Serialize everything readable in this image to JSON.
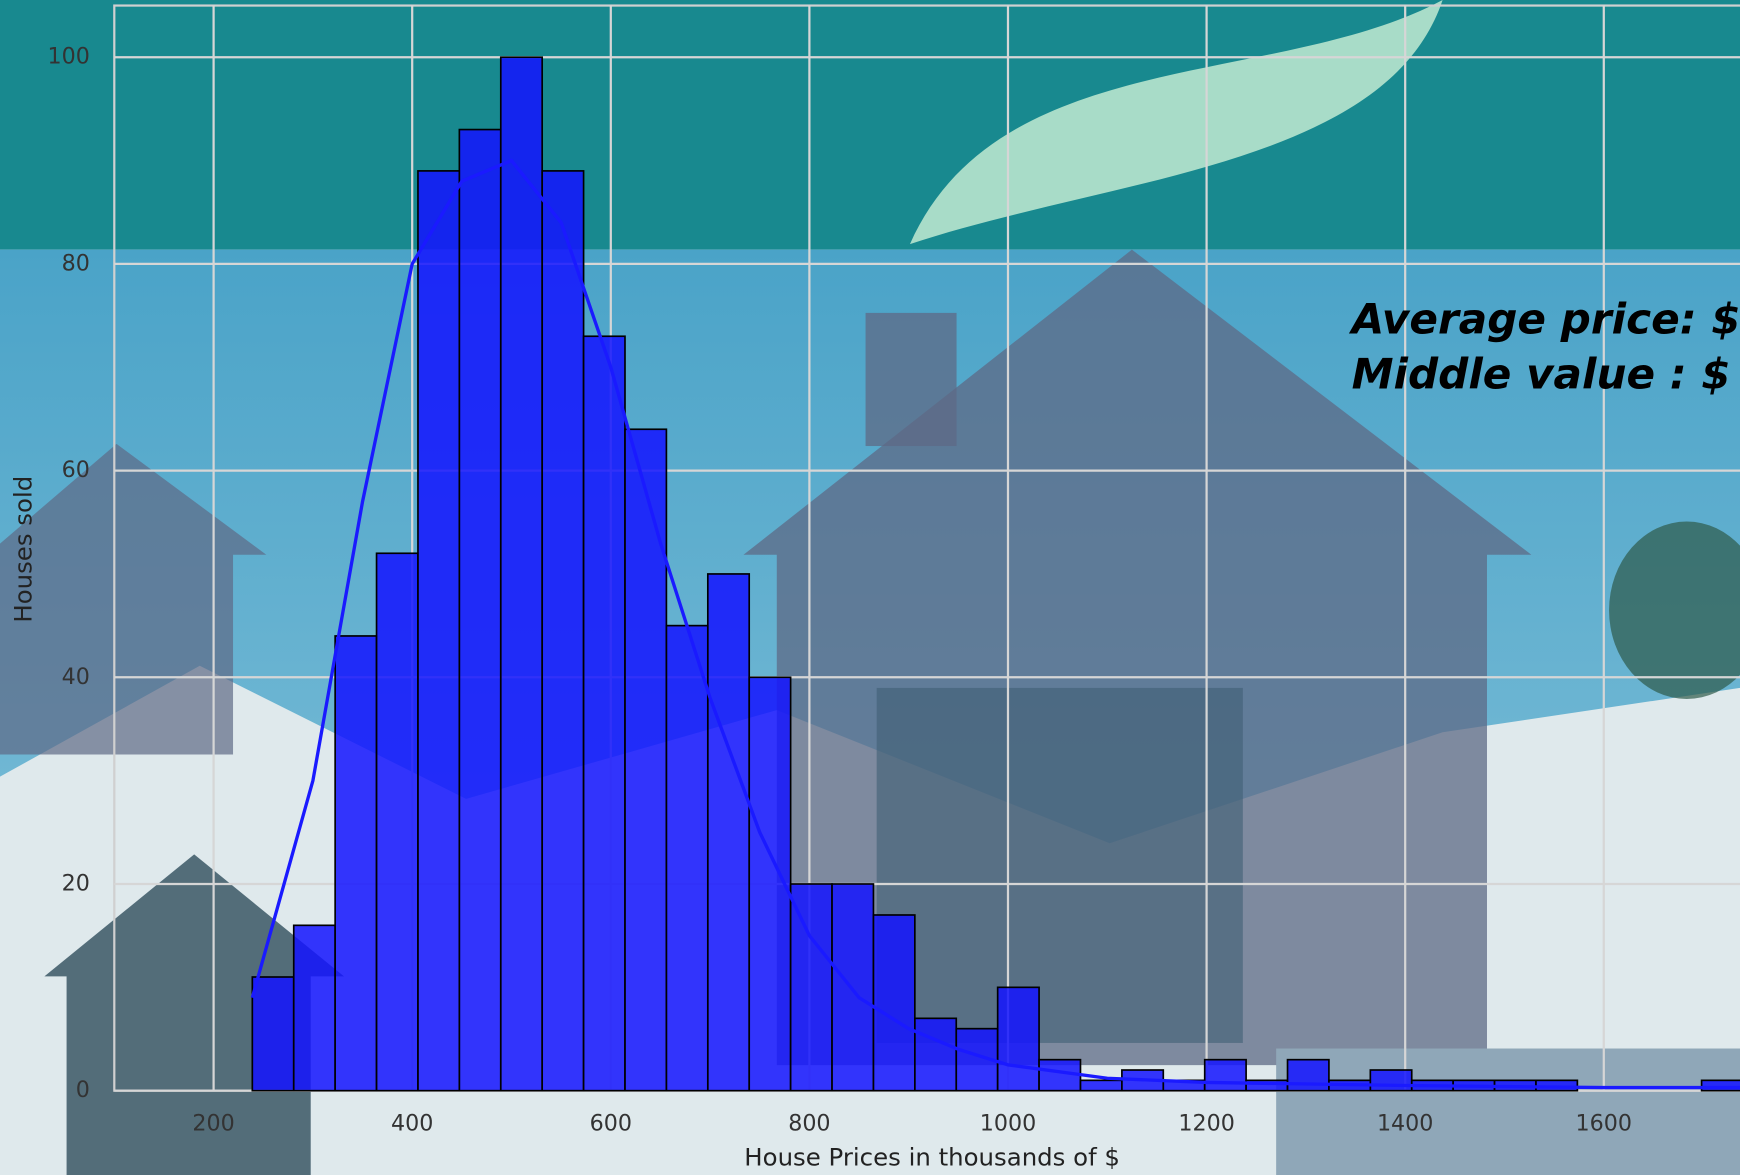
{
  "chart_data": {
    "type": "histogram",
    "xlabel": "House Prices in thousands of $",
    "ylabel": "Houses sold",
    "annotations": [
      "Average price:  $",
      "Middle value :   $"
    ],
    "bins": [
      239,
      280.7,
      322.4,
      364.1,
      405.8,
      447.5,
      489.2,
      530.9,
      572.6,
      614.3,
      656,
      697.7,
      739.4,
      781.1,
      822.8,
      864.5,
      906.2,
      947.9,
      989.6,
      1031.3,
      1073,
      1114.7,
      1156.4,
      1198.1,
      1239.8,
      1281.5,
      1323.2,
      1364.9,
      1406.6,
      1448.3,
      1490,
      1531.7,
      1573.4,
      1615.1,
      1656.8,
      1698.5,
      1740.2
    ],
    "counts": [
      11,
      16,
      44,
      52,
      89,
      93,
      100,
      89,
      73,
      64,
      45,
      50,
      40,
      20,
      20,
      17,
      7,
      6,
      10,
      3,
      1,
      2,
      1,
      3,
      1,
      3,
      1,
      2,
      1,
      1,
      1,
      1,
      0,
      0,
      0,
      1
    ],
    "color": "#1414ff",
    "edgecolor": "#000000",
    "kde": {
      "color": "#1a1aff",
      "x": [
        239,
        300,
        350,
        400,
        450,
        500,
        550,
        600,
        650,
        700,
        750,
        800,
        850,
        900,
        950,
        1000,
        1100,
        1200,
        1400,
        1600,
        1740
      ],
      "values": [
        9,
        30,
        57,
        80,
        88,
        90,
        84,
        70,
        53,
        38,
        25,
        15,
        9,
        6,
        4,
        2.5,
        1.2,
        0.8,
        0.5,
        0.3,
        0.3
      ]
    },
    "xlim": [
      100,
      1745
    ],
    "ylim": [
      0,
      105
    ],
    "xticks": [
      200,
      400,
      600,
      800,
      1000,
      1200,
      1400,
      1600
    ],
    "yticks": [
      0,
      20,
      40,
      60,
      80,
      100
    ],
    "grid": true
  }
}
